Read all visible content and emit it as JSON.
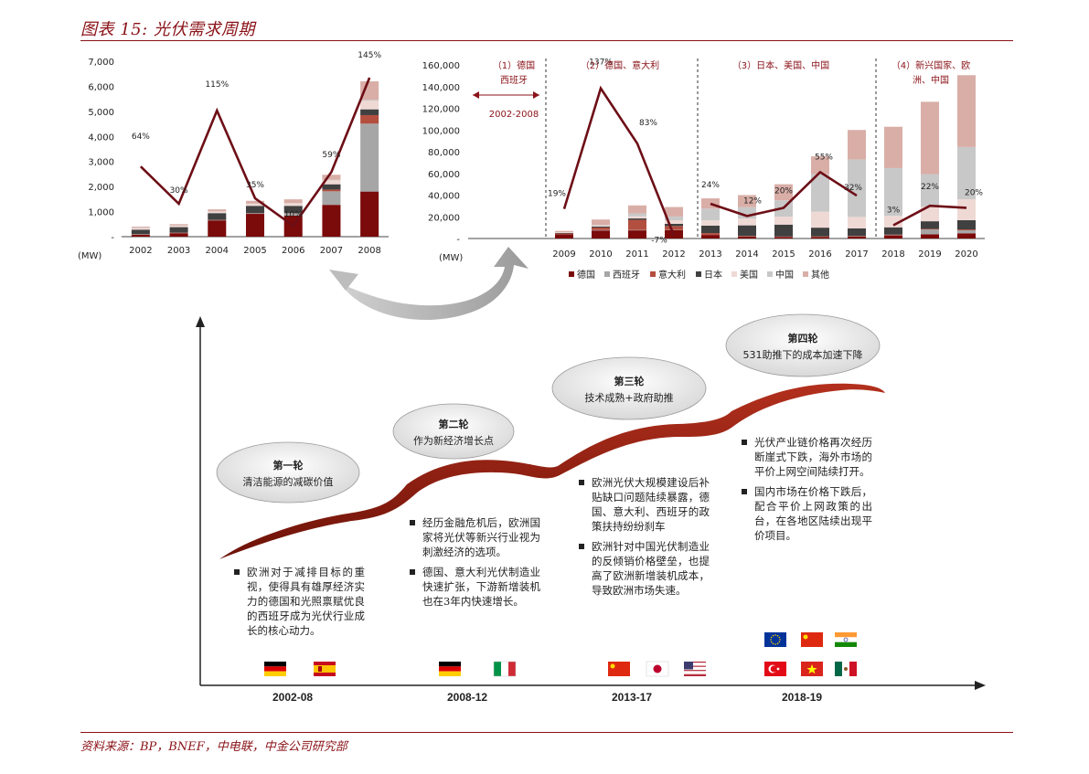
{
  "header": {
    "title": "图表 15:  光伏需求周期"
  },
  "footer": {
    "source": "资料来源：BP，BNEF，中电联，中金公司研究部"
  },
  "colors": {
    "accent": "#8a1218",
    "line": "#6d0e16"
  },
  "chart_data": [
    {
      "type": "bar",
      "stacked": true,
      "unit_label": "(MW)",
      "categories": [
        "2002",
        "2003",
        "2004",
        "2005",
        "2006",
        "2007",
        "2008"
      ],
      "ylim": [
        0,
        7000
      ],
      "yticks": [
        "-",
        "1,000",
        "2,000",
        "3,000",
        "4,000",
        "5,000",
        "6,000",
        "7,000"
      ],
      "series": [
        {
          "name": "德国",
          "color": "#7b0a0a",
          "values": [
            80,
            140,
            650,
            910,
            840,
            1270,
            1800
          ]
        },
        {
          "name": "西班牙",
          "color": "#a6a6a6",
          "values": [
            10,
            10,
            10,
            20,
            90,
            540,
            2710
          ]
        },
        {
          "name": "意大利",
          "color": "#b34f3f",
          "values": [
            10,
            10,
            10,
            10,
            10,
            70,
            340
          ]
        },
        {
          "name": "日本",
          "color": "#404040",
          "values": [
            180,
            220,
            270,
            290,
            290,
            210,
            230
          ]
        },
        {
          "name": "美国",
          "color": "#efd9d5",
          "values": [
            60,
            60,
            60,
            80,
            100,
            160,
            340
          ]
        },
        {
          "name": "中国",
          "color": "#c8c8c8",
          "values": [
            20,
            10,
            10,
            10,
            10,
            20,
            40
          ]
        },
        {
          "name": "其他",
          "color": "#d9aea7",
          "values": [
            40,
            50,
            80,
            110,
            150,
            200,
            740
          ]
        }
      ],
      "growth": {
        "values": [
          64,
          30,
          115,
          35,
          10,
          59,
          145
        ],
        "labels": [
          "64%",
          "30%",
          "115%",
          "35%",
          "10%",
          "59%",
          "145%"
        ],
        "ylim": [
          0,
          160
        ]
      }
    },
    {
      "type": "bar",
      "stacked": true,
      "unit_label": "(MW)",
      "categories": [
        "2009",
        "2010",
        "2011",
        "2012",
        "2013",
        "2014",
        "2015",
        "2016",
        "2017",
        "2018",
        "2019",
        "2020"
      ],
      "ylim": [
        0,
        160000
      ],
      "yticks": [
        "-",
        "20,000",
        "40,000",
        "60,000",
        "80,000",
        "100,000",
        "120,000",
        "140,000",
        "160,000"
      ],
      "series": [
        {
          "name": "德国",
          "color": "#7b0a0a",
          "values": [
            3800,
            7400,
            7500,
            7600,
            3300,
            1900,
            1400,
            1500,
            1800,
            2900,
            3900,
            4800
          ]
        },
        {
          "name": "西班牙",
          "color": "#a6a6a6",
          "values": [
            100,
            400,
            400,
            300,
            100,
            100,
            100,
            100,
            100,
            300,
            4400,
            2800
          ]
        },
        {
          "name": "意大利",
          "color": "#b34f3f",
          "values": [
            700,
            2300,
            9300,
            3600,
            1600,
            400,
            300,
            400,
            400,
            400,
            600,
            800
          ]
        },
        {
          "name": "日本",
          "color": "#404040",
          "values": [
            500,
            1000,
            1300,
            2000,
            6900,
            9700,
            11000,
            8000,
            7000,
            6700,
            7000,
            8500
          ]
        },
        {
          "name": "美国",
          "color": "#efd9d5",
          "values": [
            500,
            900,
            1900,
            3300,
            4800,
            6200,
            7300,
            14700,
            10600,
            10600,
            13300,
            19200
          ]
        },
        {
          "name": "中国",
          "color": "#c8c8c8",
          "values": [
            200,
            500,
            2700,
            3500,
            10900,
            10600,
            15100,
            34500,
            53000,
            44000,
            30100,
            48200
          ]
        },
        {
          "name": "其他",
          "color": "#d9aea7",
          "values": [
            1200,
            5000,
            7400,
            8700,
            9400,
            11100,
            14800,
            16500,
            27100,
            38100,
            66700,
            66200
          ]
        }
      ],
      "growth": {
        "values": [
          19,
          137,
          83,
          -7,
          24,
          12,
          20,
          55,
          32,
          3,
          22,
          20
        ],
        "labels": [
          "19%",
          "137%",
          "83%",
          "-7%",
          "24%",
          "12%",
          "20%",
          "55%",
          "32%",
          "3%",
          "22%",
          "20%"
        ],
        "ylim": [
          -10,
          160
        ]
      },
      "phases": [
        {
          "label1": "（1）德国",
          "label2": "西班牙",
          "sub": "2002-2008"
        },
        {
          "label1": "（2）德国、意大利",
          "label2": ""
        },
        {
          "label1": "（3）日本、美国、中国",
          "label2": ""
        },
        {
          "label1": "（4）新兴国家、欧",
          "label2": "洲、中国"
        }
      ]
    }
  ],
  "rounds": [
    {
      "title": "第一轮",
      "subtitle": "清洁能源的减碳价值",
      "era": "2002-08",
      "bullets": [
        "欧洲对于减排目标的重视，使得具有雄厚经济实力的德国和光照禀赋优良的西班牙成为光伏行业成长的核心动力。"
      ]
    },
    {
      "title": "第二轮",
      "subtitle": "作为新经济增长点",
      "era": "2008-12",
      "bullets": [
        "经历金融危机后，欧洲国家将光伏等新兴行业视为刺激经济的选项。",
        "德国、意大利光伏制造业快速扩张，下游新增装机也在3年内快速增长。"
      ]
    },
    {
      "title": "第三轮",
      "subtitle": "技术成熟+政府助推",
      "era": "2013-17",
      "bullets": [
        "欧洲光伏大规模建设后补贴缺口问题陆续暴露，德国、意大利、西班牙的政策扶持纷纷刹车",
        "欧洲针对中国光伏制造业的反倾销价格壁垒，也提高了欧洲新增装机成本，导致欧洲市场失速。"
      ]
    },
    {
      "title": "第四轮",
      "subtitle": "531助推下的成本加速下降",
      "era": "2018-19",
      "bullets": [
        "光伏产业链价格再次经历断崖式下跌，海外市场的平价上网空间陆续打开。",
        "国内市场在价格下跌后，配合平价上网政策的出台，在各地区陆续出现平价项目。"
      ]
    }
  ],
  "flags": {
    "round1": [
      "germany-flag",
      "spain-flag"
    ],
    "round2": [
      "germany-flag",
      "italy-flag"
    ],
    "round3": [
      "china-flag",
      "japan-flag",
      "usa-flag"
    ],
    "round4": [
      "eu-flag",
      "china-flag",
      "india-flag",
      "turkey-flag",
      "vietnam-flag",
      "mexico-flag"
    ]
  }
}
